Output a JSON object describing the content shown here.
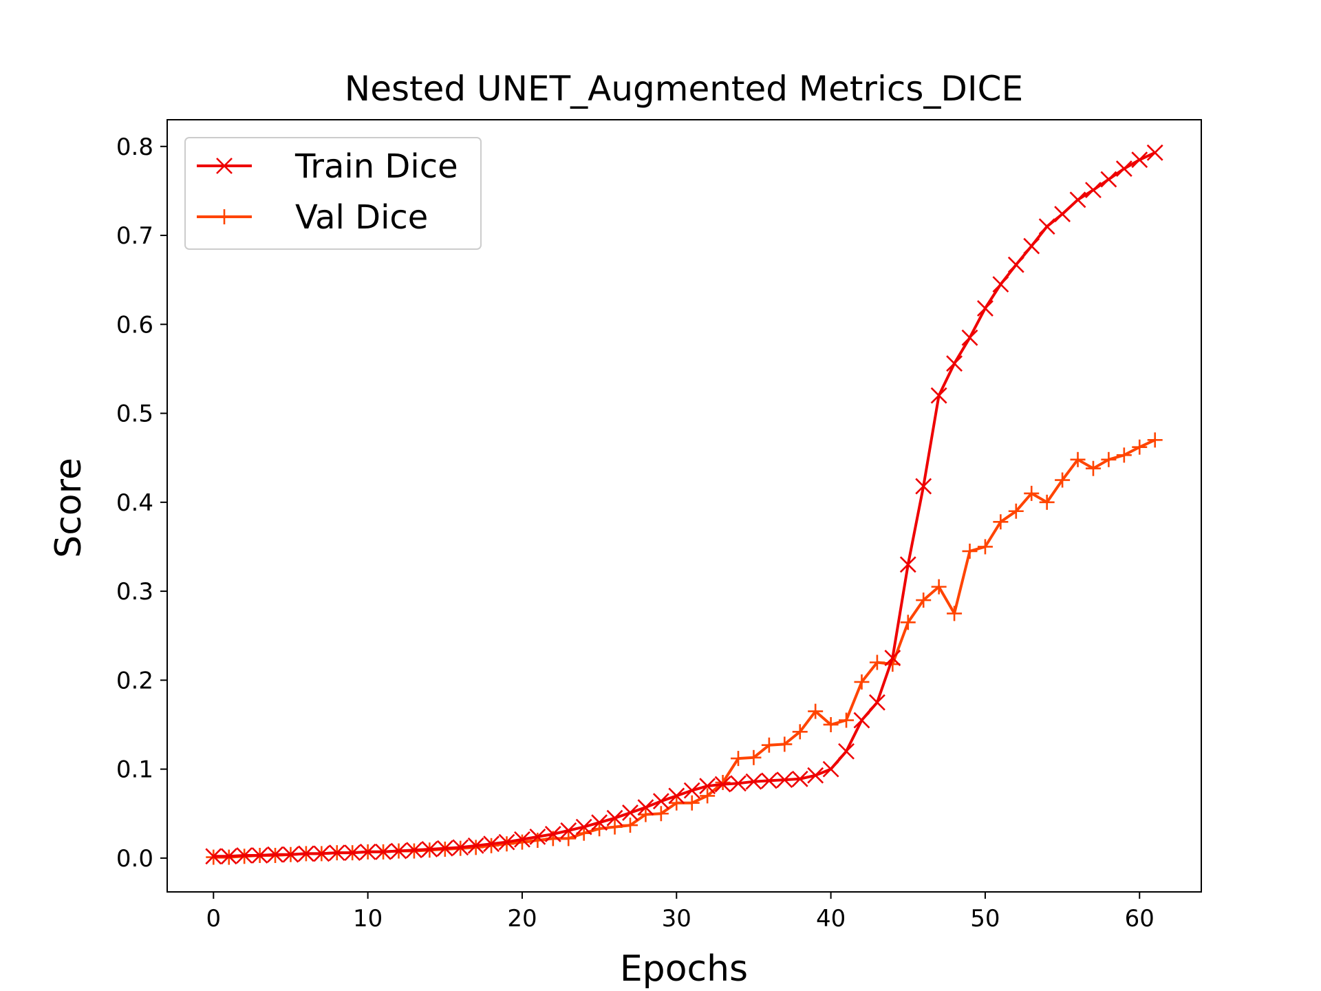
{
  "chart_data": {
    "type": "line",
    "title": "Nested UNET_Augmented Metrics_DICE",
    "xlabel": "Epochs",
    "ylabel": "Score",
    "xlim": [
      -3,
      64
    ],
    "ylim": [
      -0.038,
      0.83
    ],
    "xticks": [
      0,
      10,
      20,
      30,
      40,
      50,
      60
    ],
    "xtick_labels": [
      "0",
      "10",
      "20",
      "30",
      "40",
      "50",
      "60"
    ],
    "yticks": [
      0.0,
      0.1,
      0.2,
      0.3,
      0.4,
      0.5,
      0.6,
      0.7,
      0.8
    ],
    "ytick_labels": [
      "0.0",
      "0.1",
      "0.2",
      "0.3",
      "0.4",
      "0.5",
      "0.6",
      "0.7",
      "0.8"
    ],
    "grid": false,
    "legend_position": "top-left",
    "x": [
      0,
      1,
      2,
      3,
      4,
      5,
      6,
      7,
      8,
      9,
      10,
      11,
      12,
      13,
      14,
      15,
      16,
      17,
      18,
      19,
      20,
      21,
      22,
      23,
      24,
      25,
      26,
      27,
      28,
      29,
      30,
      31,
      32,
      33,
      34,
      35,
      36,
      37,
      38,
      39,
      40,
      41,
      42,
      43,
      44,
      45,
      46,
      47,
      48,
      49,
      50,
      51,
      52,
      53,
      54,
      55,
      56,
      57,
      58,
      59,
      60,
      61
    ],
    "series": [
      {
        "name": "Train Dice",
        "color": "#ee0000",
        "marker": "x",
        "values": [
          0.002,
          0.002,
          0.003,
          0.003,
          0.004,
          0.004,
          0.005,
          0.005,
          0.006,
          0.006,
          0.007,
          0.007,
          0.008,
          0.009,
          0.01,
          0.011,
          0.012,
          0.014,
          0.016,
          0.018,
          0.021,
          0.024,
          0.027,
          0.031,
          0.035,
          0.04,
          0.045,
          0.051,
          0.057,
          0.064,
          0.07,
          0.076,
          0.081,
          0.083,
          0.084,
          0.086,
          0.087,
          0.088,
          0.089,
          0.093,
          0.1,
          0.12,
          0.155,
          0.175,
          0.225,
          0.33,
          0.418,
          0.52,
          0.556,
          0.585,
          0.618,
          0.645,
          0.667,
          0.688,
          0.71,
          0.724,
          0.74,
          0.751,
          0.763,
          0.775,
          0.785,
          0.793
        ]
      },
      {
        "name": "Val Dice",
        "color": "#ff4400",
        "marker": "+",
        "values": [
          0.001,
          0.001,
          0.002,
          0.003,
          0.003,
          0.004,
          0.005,
          0.005,
          0.006,
          0.006,
          0.007,
          0.007,
          0.008,
          0.008,
          0.009,
          0.01,
          0.011,
          0.012,
          0.014,
          0.016,
          0.018,
          0.02,
          0.022,
          0.022,
          0.028,
          0.033,
          0.035,
          0.037,
          0.049,
          0.05,
          0.062,
          0.062,
          0.07,
          0.085,
          0.112,
          0.113,
          0.127,
          0.128,
          0.142,
          0.165,
          0.15,
          0.155,
          0.198,
          0.22,
          0.218,
          0.265,
          0.29,
          0.305,
          0.275,
          0.345,
          0.35,
          0.378,
          0.39,
          0.41,
          0.4,
          0.425,
          0.448,
          0.438,
          0.448,
          0.453,
          0.462,
          0.47
        ]
      }
    ]
  }
}
